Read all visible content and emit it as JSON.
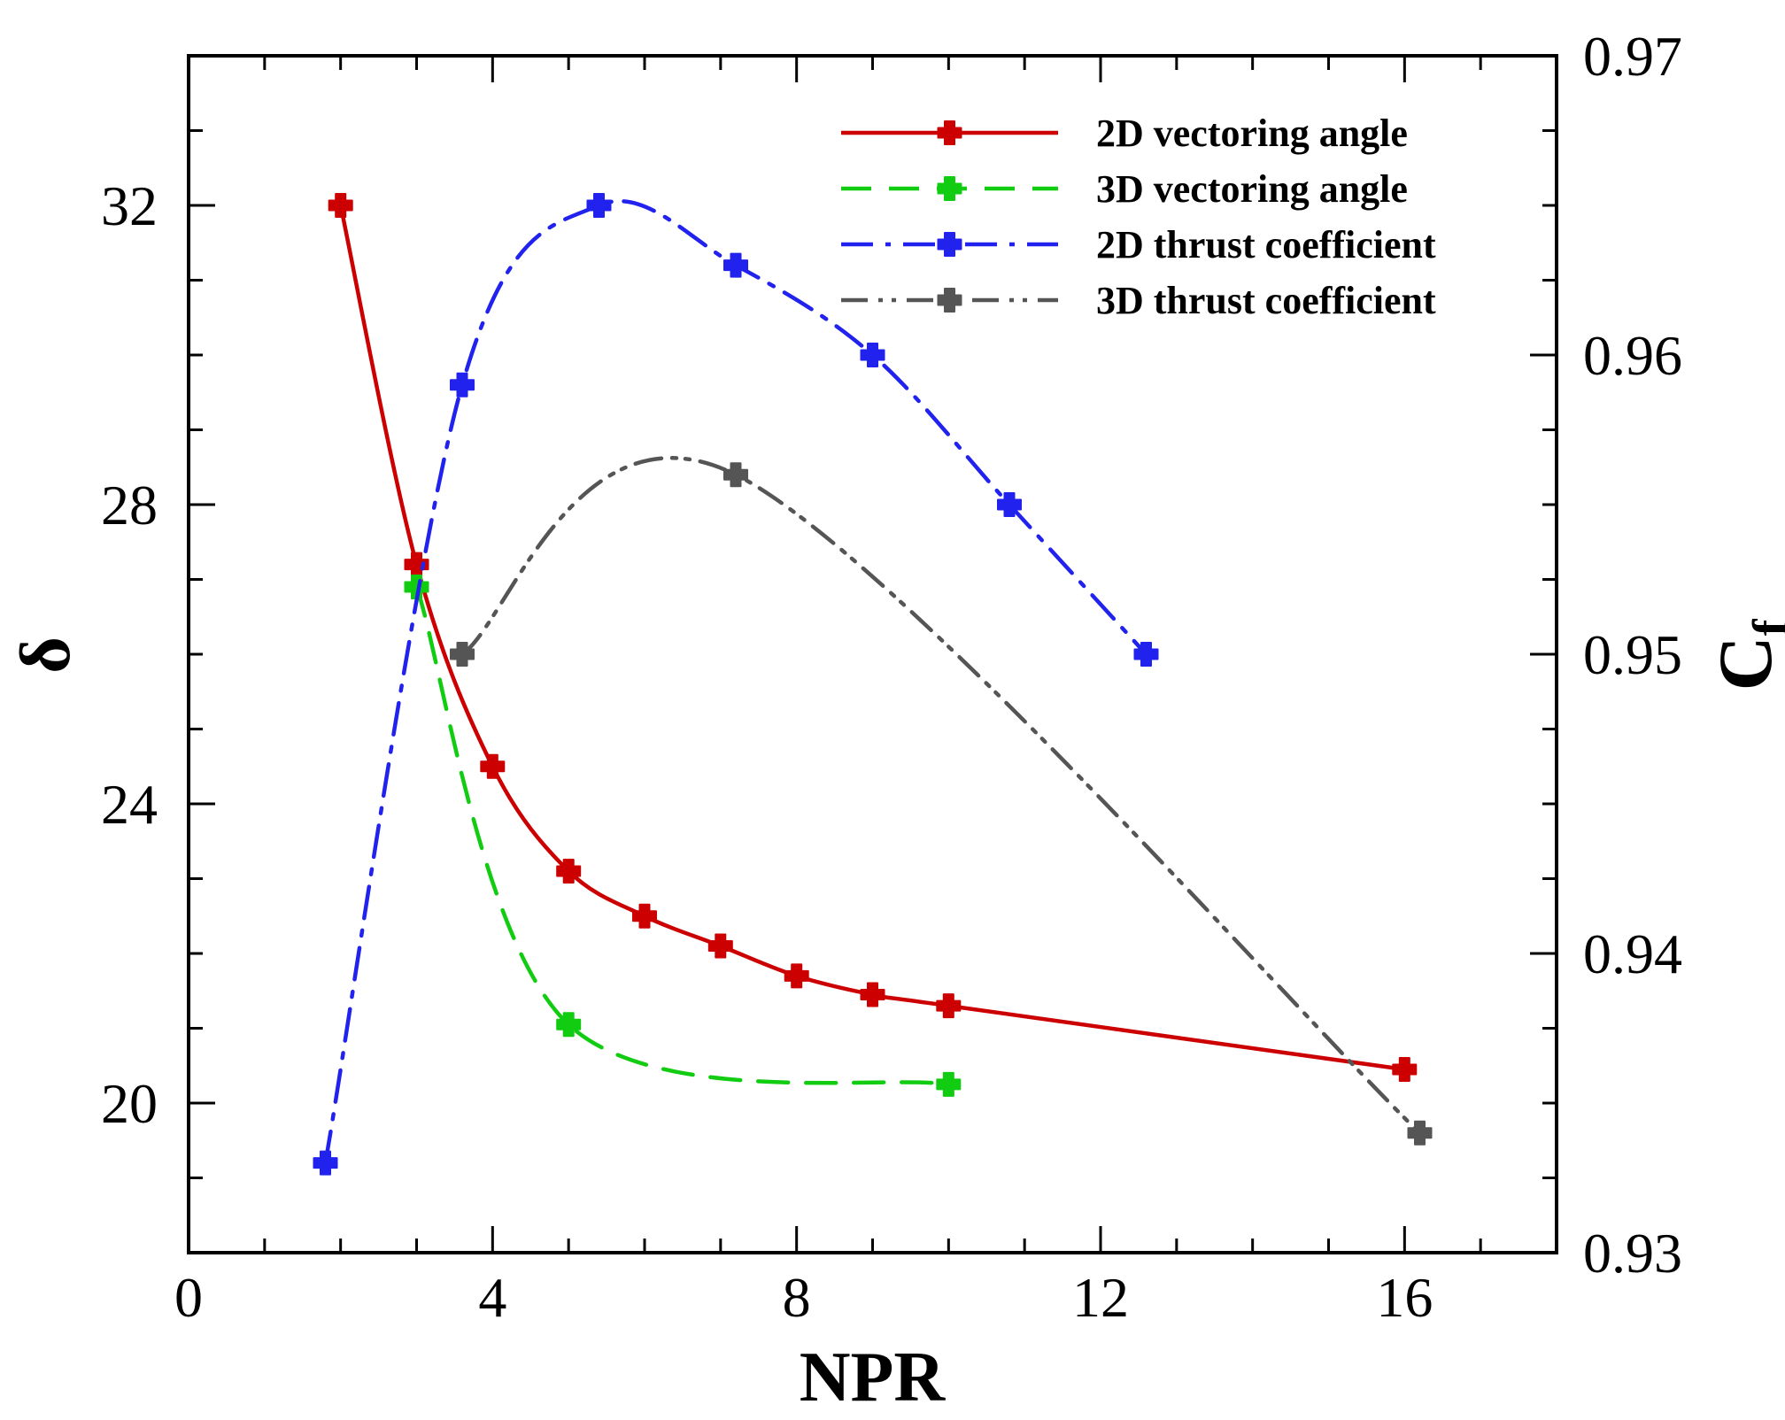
{
  "chart_data": {
    "type": "line",
    "xlabel": "NPR",
    "ylabel_left": "δ",
    "ylabel_right": {
      "main": "C",
      "sub": "f"
    },
    "xlim": [
      0,
      18
    ],
    "ylim_left": [
      18,
      34
    ],
    "ylim_right": [
      0.93,
      0.97
    ],
    "x_ticks": [
      0,
      4,
      8,
      12,
      16
    ],
    "x_tick_labels": [
      "0",
      "4",
      "8",
      "12",
      "16"
    ],
    "y_left_ticks": [
      20,
      24,
      28,
      32
    ],
    "y_left_tick_labels": [
      "20",
      "24",
      "28",
      "32"
    ],
    "y_right_ticks": [
      0.93,
      0.94,
      0.95,
      0.96,
      0.97
    ],
    "y_right_tick_labels": [
      "0.93",
      "0.94",
      "0.95",
      "0.96",
      "0.97"
    ],
    "legend_position": "top-right",
    "series": [
      {
        "name": "2D vectoring angle",
        "axis": "left",
        "color": "#cc0000",
        "dash": "solid",
        "x": [
          2,
          3,
          4,
          5,
          6,
          7,
          8,
          9,
          10,
          16
        ],
        "y": [
          32.0,
          27.2,
          24.5,
          23.1,
          22.5,
          22.1,
          21.7,
          21.45,
          21.3,
          20.45
        ]
      },
      {
        "name": "3D vectoring angle",
        "axis": "left",
        "color": "#11cc11",
        "dash": "dashed",
        "x": [
          3,
          5,
          10
        ],
        "y": [
          26.9,
          21.05,
          20.25
        ]
      },
      {
        "name": "2D thrust coefficient",
        "axis": "right",
        "color": "#2222ee",
        "dash": "dashdot",
        "x": [
          1.8,
          3.6,
          5.4,
          7.2,
          9.0,
          10.8,
          12.6
        ],
        "y": [
          0.933,
          0.959,
          0.965,
          0.963,
          0.96,
          0.955,
          0.95
        ]
      },
      {
        "name": "3D thrust coefficient",
        "axis": "right",
        "color": "#555555",
        "dash": "dashdotdot",
        "x": [
          3.6,
          7.2,
          16.2
        ],
        "y": [
          0.95,
          0.956,
          0.934
        ]
      }
    ]
  }
}
